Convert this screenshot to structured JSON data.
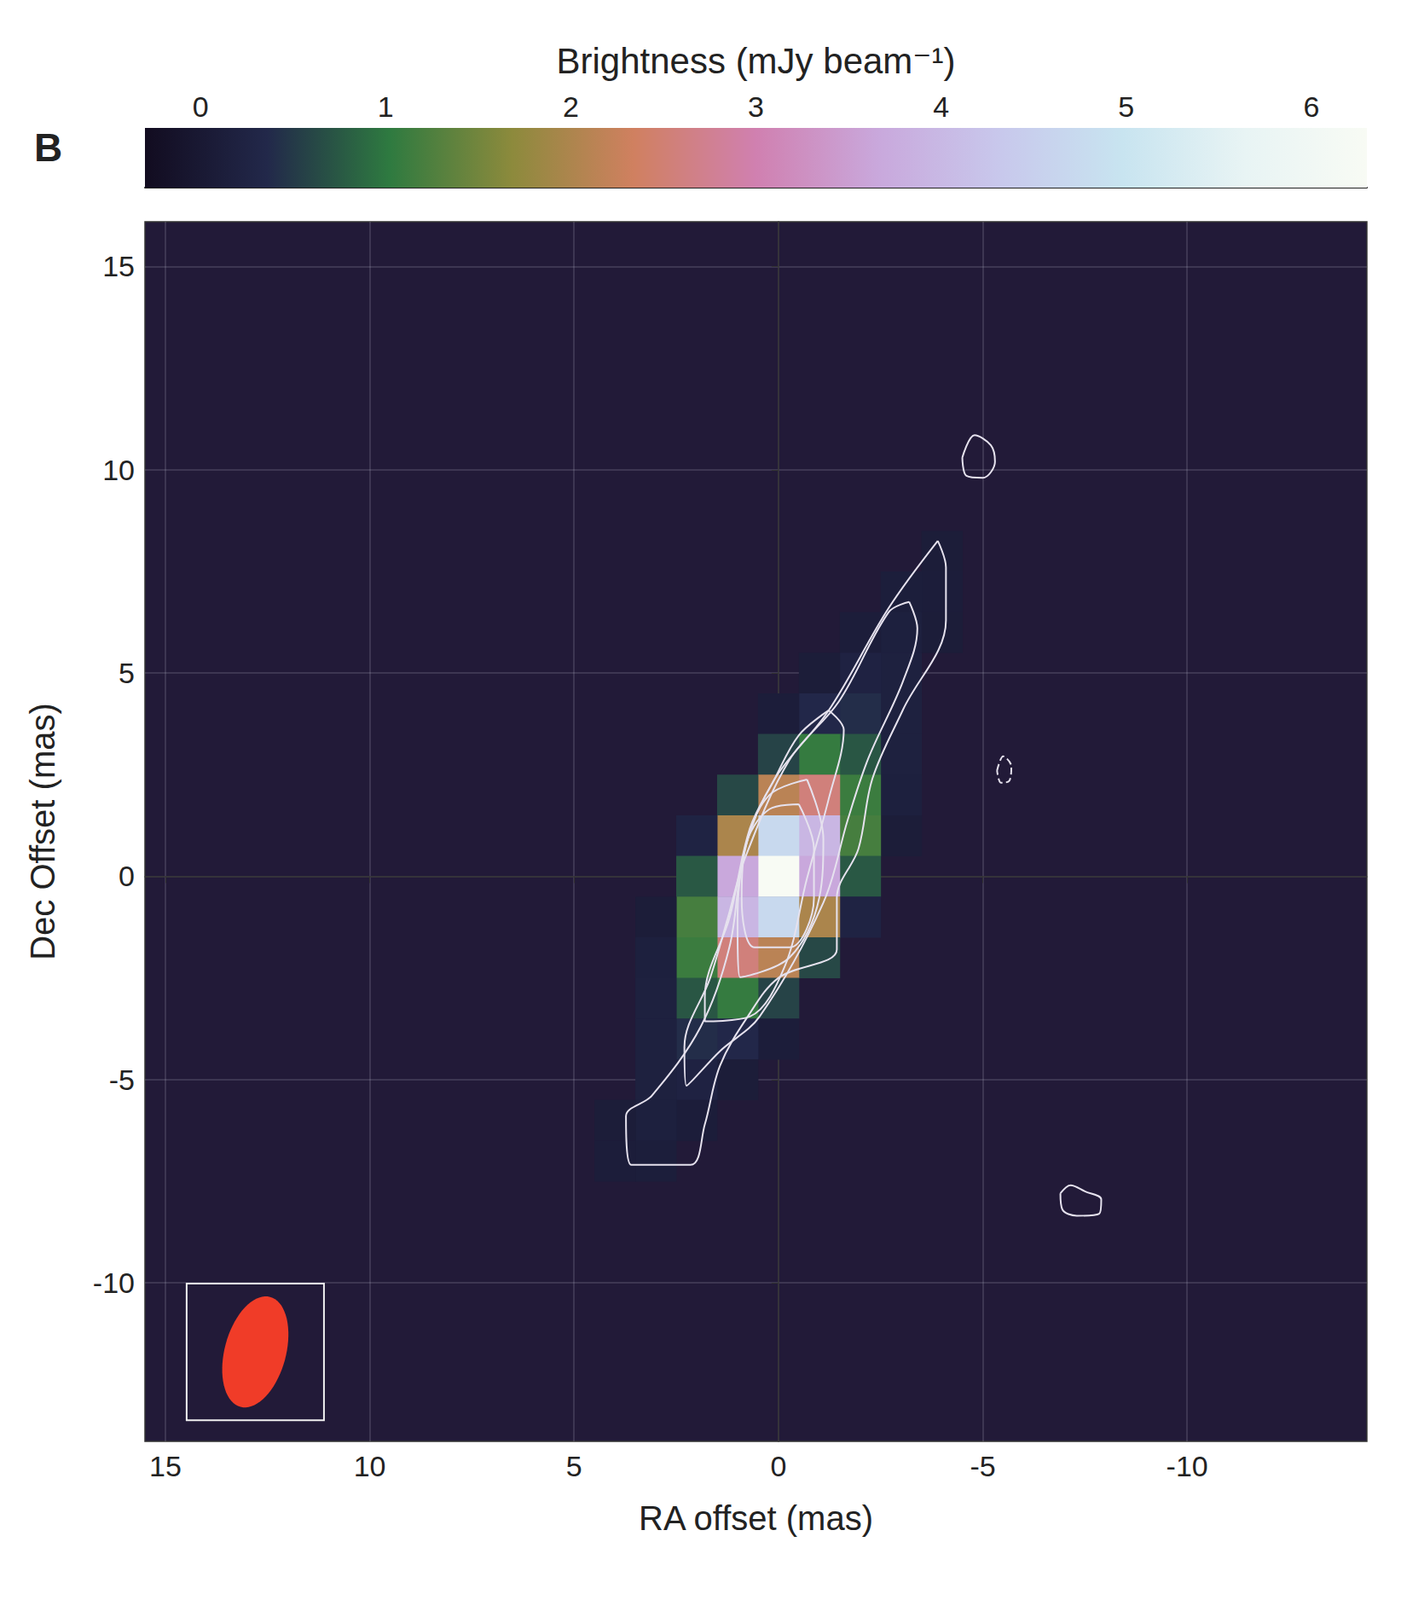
{
  "chart_data": {
    "type": "heatmap",
    "panel": "B",
    "x_label": "RA offset (mas)",
    "y_label": "Dec Offset (mas)",
    "xlim": [
      15.5,
      -14.4
    ],
    "xticks": [
      15,
      10,
      5,
      0,
      -5,
      -10
    ],
    "ylim": [
      -13.9,
      16.1
    ],
    "yticks": [
      -10,
      -5,
      0,
      5,
      10,
      15
    ],
    "grid": true,
    "colorbar": {
      "title": "Brightness (mJy beam⁻¹)",
      "lim": [
        -0.3,
        6.3
      ],
      "ticks": [
        0,
        1,
        2,
        3,
        4,
        5,
        6
      ]
    },
    "image": {
      "cell": 1,
      "cells": [
        [
          -4,
          8,
          0.1
        ],
        [
          -4,
          7,
          0.11
        ],
        [
          -3,
          7,
          0.12
        ],
        [
          -4,
          6,
          0.1
        ],
        [
          -3,
          6,
          0.17
        ],
        [
          -2,
          6,
          0.11
        ],
        [
          -3,
          5,
          0.19
        ],
        [
          -2,
          5,
          0.23
        ],
        [
          -1,
          5,
          0.1
        ],
        [
          -3,
          4,
          0.19
        ],
        [
          -2,
          4,
          0.4
        ],
        [
          -1,
          4,
          0.34
        ],
        [
          0,
          4,
          0.11
        ],
        [
          -3,
          3,
          0.19
        ],
        [
          -2,
          3,
          0.73
        ],
        [
          -1,
          3,
          1.07
        ],
        [
          0,
          3,
          0.58
        ],
        [
          -3,
          2,
          0.17
        ],
        [
          -2,
          2,
          1.11
        ],
        [
          -1,
          2,
          2.56
        ],
        [
          0,
          2,
          2.13
        ],
        [
          1,
          2,
          0.62
        ],
        [
          -3,
          1,
          0.1
        ],
        [
          -2,
          1,
          1.19
        ],
        [
          -1,
          1,
          3.94
        ],
        [
          0,
          1,
          4.71
        ],
        [
          1,
          1,
          1.98
        ],
        [
          2,
          1,
          0.25
        ],
        [
          -2,
          0,
          0.75
        ],
        [
          -1,
          0,
          3.67
        ],
        [
          0,
          0,
          6.3
        ],
        [
          1,
          0,
          3.67
        ],
        [
          2,
          0,
          0.75
        ],
        [
          -2,
          -1,
          0.25
        ],
        [
          -1,
          -1,
          1.98
        ],
        [
          0,
          -1,
          4.71
        ],
        [
          1,
          -1,
          3.94
        ],
        [
          2,
          -1,
          1.19
        ],
        [
          3,
          -1,
          0.1
        ],
        [
          -1,
          -2,
          0.62
        ],
        [
          0,
          -2,
          2.13
        ],
        [
          1,
          -2,
          2.56
        ],
        [
          2,
          -2,
          1.11
        ],
        [
          3,
          -2,
          0.17
        ],
        [
          0,
          -3,
          0.58
        ],
        [
          1,
          -3,
          1.07
        ],
        [
          2,
          -3,
          0.73
        ],
        [
          3,
          -3,
          0.19
        ],
        [
          0,
          -4,
          0.11
        ],
        [
          1,
          -4,
          0.34
        ],
        [
          2,
          -4,
          0.4
        ],
        [
          3,
          -4,
          0.19
        ],
        [
          1,
          -5,
          0.1
        ],
        [
          2,
          -5,
          0.23
        ],
        [
          3,
          -5,
          0.19
        ],
        [
          2,
          -6,
          0.11
        ],
        [
          3,
          -6,
          0.17
        ],
        [
          4,
          -6,
          0.1
        ],
        [
          3,
          -7,
          0.12
        ],
        [
          4,
          -7,
          0.11
        ]
      ]
    },
    "contours": [
      {
        "level": 0.2,
        "points": [
          [
            -3.9,
            8.25
          ],
          [
            -4.1,
            7.6
          ],
          [
            -4.1,
            6.3
          ],
          [
            -3.05,
            4.1
          ],
          [
            -2.3,
            2.4
          ],
          [
            -1.96,
            0.68
          ],
          [
            -1.43,
            -0.53
          ],
          [
            -1.43,
            -1.8
          ],
          [
            0,
            -2.5
          ],
          [
            0.75,
            -3.45
          ],
          [
            1.43,
            -4.66
          ],
          [
            1.8,
            -6.1
          ],
          [
            2.15,
            -7.1
          ],
          [
            3.6,
            -7.1
          ],
          [
            3.73,
            -5.9
          ],
          [
            3.1,
            -5.4
          ],
          [
            1.9,
            -3.7
          ],
          [
            1.2,
            -1.75
          ],
          [
            0.82,
            0.68
          ],
          [
            0.1,
            2.38
          ],
          [
            -1.23,
            4.08
          ],
          [
            -2.7,
            6.6
          ]
        ]
      },
      {
        "level": 0.4,
        "points": [
          [
            -3.2,
            6.75
          ],
          [
            -3.4,
            6.1
          ],
          [
            -3.05,
            4.8
          ],
          [
            -2.2,
            2.9
          ],
          [
            -1.7,
            1.4
          ],
          [
            -1.1,
            -0.65
          ],
          [
            0.46,
            -3.45
          ],
          [
            1.43,
            -4.3
          ],
          [
            2.25,
            -5.15
          ],
          [
            2.3,
            -4.2
          ],
          [
            1.67,
            -2.5
          ],
          [
            1.23,
            -1.0
          ],
          [
            0.82,
            0.44
          ],
          [
            -0.27,
            2.86
          ],
          [
            -1.48,
            4.3
          ],
          [
            -2.7,
            6.5
          ]
        ]
      },
      {
        "level": 0.8,
        "points": [
          [
            -1.23,
            4.08
          ],
          [
            -1.6,
            3.6
          ],
          [
            -1.23,
            1.9
          ],
          [
            -0.7,
            -0.05
          ],
          [
            -0.15,
            -2.23
          ],
          [
            0.7,
            -3.45
          ],
          [
            1.8,
            -3.57
          ],
          [
            1.8,
            -2.96
          ],
          [
            1.19,
            -1.0
          ],
          [
            0.7,
            1.17
          ],
          [
            0.1,
            2.38
          ],
          [
            -0.5,
            3.47
          ]
        ]
      },
      {
        "level": 1.6,
        "points": [
          [
            -0.7,
            2.38
          ],
          [
            -1.1,
            0.92
          ],
          [
            -1.0,
            -0.53
          ],
          [
            -0.27,
            -2.0
          ],
          [
            0.94,
            -2.48
          ],
          [
            1.0,
            -1.0
          ],
          [
            0.75,
            0.92
          ],
          [
            0.22,
            2.0
          ]
        ]
      },
      {
        "level": 3.2,
        "points": [
          [
            -0.5,
            1.77
          ],
          [
            -0.87,
            0.68
          ],
          [
            -0.87,
            -0.53
          ],
          [
            -0.27,
            -1.75
          ],
          [
            0.58,
            -1.75
          ],
          [
            0.9,
            -0.53
          ],
          [
            0.82,
            0.68
          ],
          [
            0.22,
            1.65
          ]
        ]
      },
      {
        "level": 0.2,
        "points": [
          [
            -4.5,
            10.3
          ],
          [
            -4.8,
            10.85
          ],
          [
            -5.2,
            10.6
          ],
          [
            -5.3,
            10.2
          ],
          [
            -5.0,
            9.8
          ],
          [
            -4.6,
            9.85
          ]
        ]
      },
      {
        "level": -0.2,
        "points": [
          [
            -5.35,
            2.6
          ],
          [
            -5.5,
            2.95
          ],
          [
            -5.7,
            2.7
          ],
          [
            -5.65,
            2.35
          ],
          [
            -5.45,
            2.3
          ]
        ]
      },
      {
        "level": 0.2,
        "points": [
          [
            -6.9,
            -7.8
          ],
          [
            -7.15,
            -7.6
          ],
          [
            -7.5,
            -7.75
          ],
          [
            -7.9,
            -7.95
          ],
          [
            -7.85,
            -8.3
          ],
          [
            -7.3,
            -8.35
          ],
          [
            -6.95,
            -8.2
          ]
        ]
      }
    ],
    "beam": {
      "x": 12.8,
      "y": -11.7,
      "major": 2.8,
      "minor": 1.5,
      "pa": -15
    }
  }
}
